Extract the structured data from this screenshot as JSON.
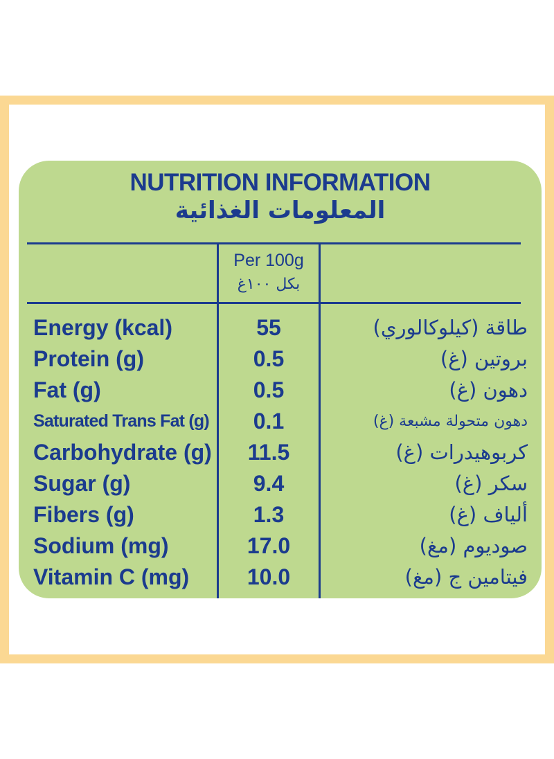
{
  "title": {
    "en": "NUTRITION INFORMATION",
    "ar": "المعلومات الغذائية"
  },
  "columns": {
    "per_en": "Per 100g",
    "per_ar": "بكل ١٠٠غ"
  },
  "rows": [
    {
      "en": "Energy (kcal)",
      "value": "55",
      "ar": "طاقة (كيلوكالوري)"
    },
    {
      "en": "Protein (g)",
      "value": "0.5",
      "ar": "بروتين (غ)"
    },
    {
      "en": "Fat (g)",
      "value": "0.5",
      "ar": "دهون (غ)"
    },
    {
      "en": "Saturated Trans Fat (g)",
      "value": "0.1",
      "ar": "دهون متحولة مشبعة (غ)"
    },
    {
      "en": "Carbohydrate (g)",
      "value": "11.5",
      "ar": "كربوهيدرات (غ)"
    },
    {
      "en": "Sugar (g)",
      "value": "9.4",
      "ar": "سكر (غ)"
    },
    {
      "en": "Fibers (g)",
      "value": "1.3",
      "ar": "ألياف (غ)"
    },
    {
      "en": "Sodium (mg)",
      "value": "17.0",
      "ar": "صوديوم (مغ)"
    },
    {
      "en": "Vitamin C (mg)",
      "value": "10.0",
      "ar": "فيتامين ج (مغ)"
    }
  ],
  "colors": {
    "frame": "#fbd893",
    "panel": "#bed98f",
    "text": "#1b3b8e"
  }
}
